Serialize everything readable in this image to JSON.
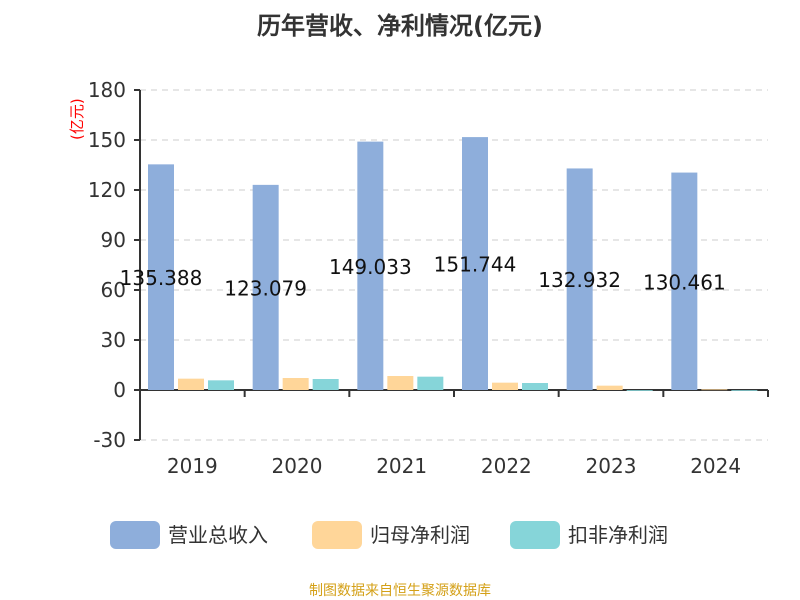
{
  "title": "历年营收、净利情况(亿元)",
  "source": "制图数据来自恒生聚源数据库",
  "chart_data": {
    "type": "bar",
    "title": "历年营收、净利情况(亿元)",
    "ylabel": "(亿元)",
    "ylim": [
      -30,
      180
    ],
    "yticks": [
      -30,
      0,
      30,
      60,
      90,
      120,
      150,
      180
    ],
    "grid": true,
    "legend": "bottom",
    "categories": [
      "2019",
      "2020",
      "2021",
      "2022",
      "2023",
      "2024"
    ],
    "series": [
      {
        "name": "营业总收入",
        "color": "#8eaedb",
        "values": [
          135.388,
          123.079,
          149.033,
          151.744,
          132.932,
          130.461
        ],
        "labels": [
          "135.388",
          "123.079",
          "149.033",
          "151.744",
          "132.932",
          "130.461"
        ]
      },
      {
        "name": "归母净利润",
        "color": "#ffd699",
        "values": [
          6.8,
          7.2,
          8.4,
          4.4,
          2.6,
          0.4
        ]
      },
      {
        "name": "扣非净利润",
        "color": "#86d5d9",
        "values": [
          5.8,
          6.6,
          8.0,
          4.2,
          -0.5,
          -0.1
        ]
      }
    ]
  }
}
